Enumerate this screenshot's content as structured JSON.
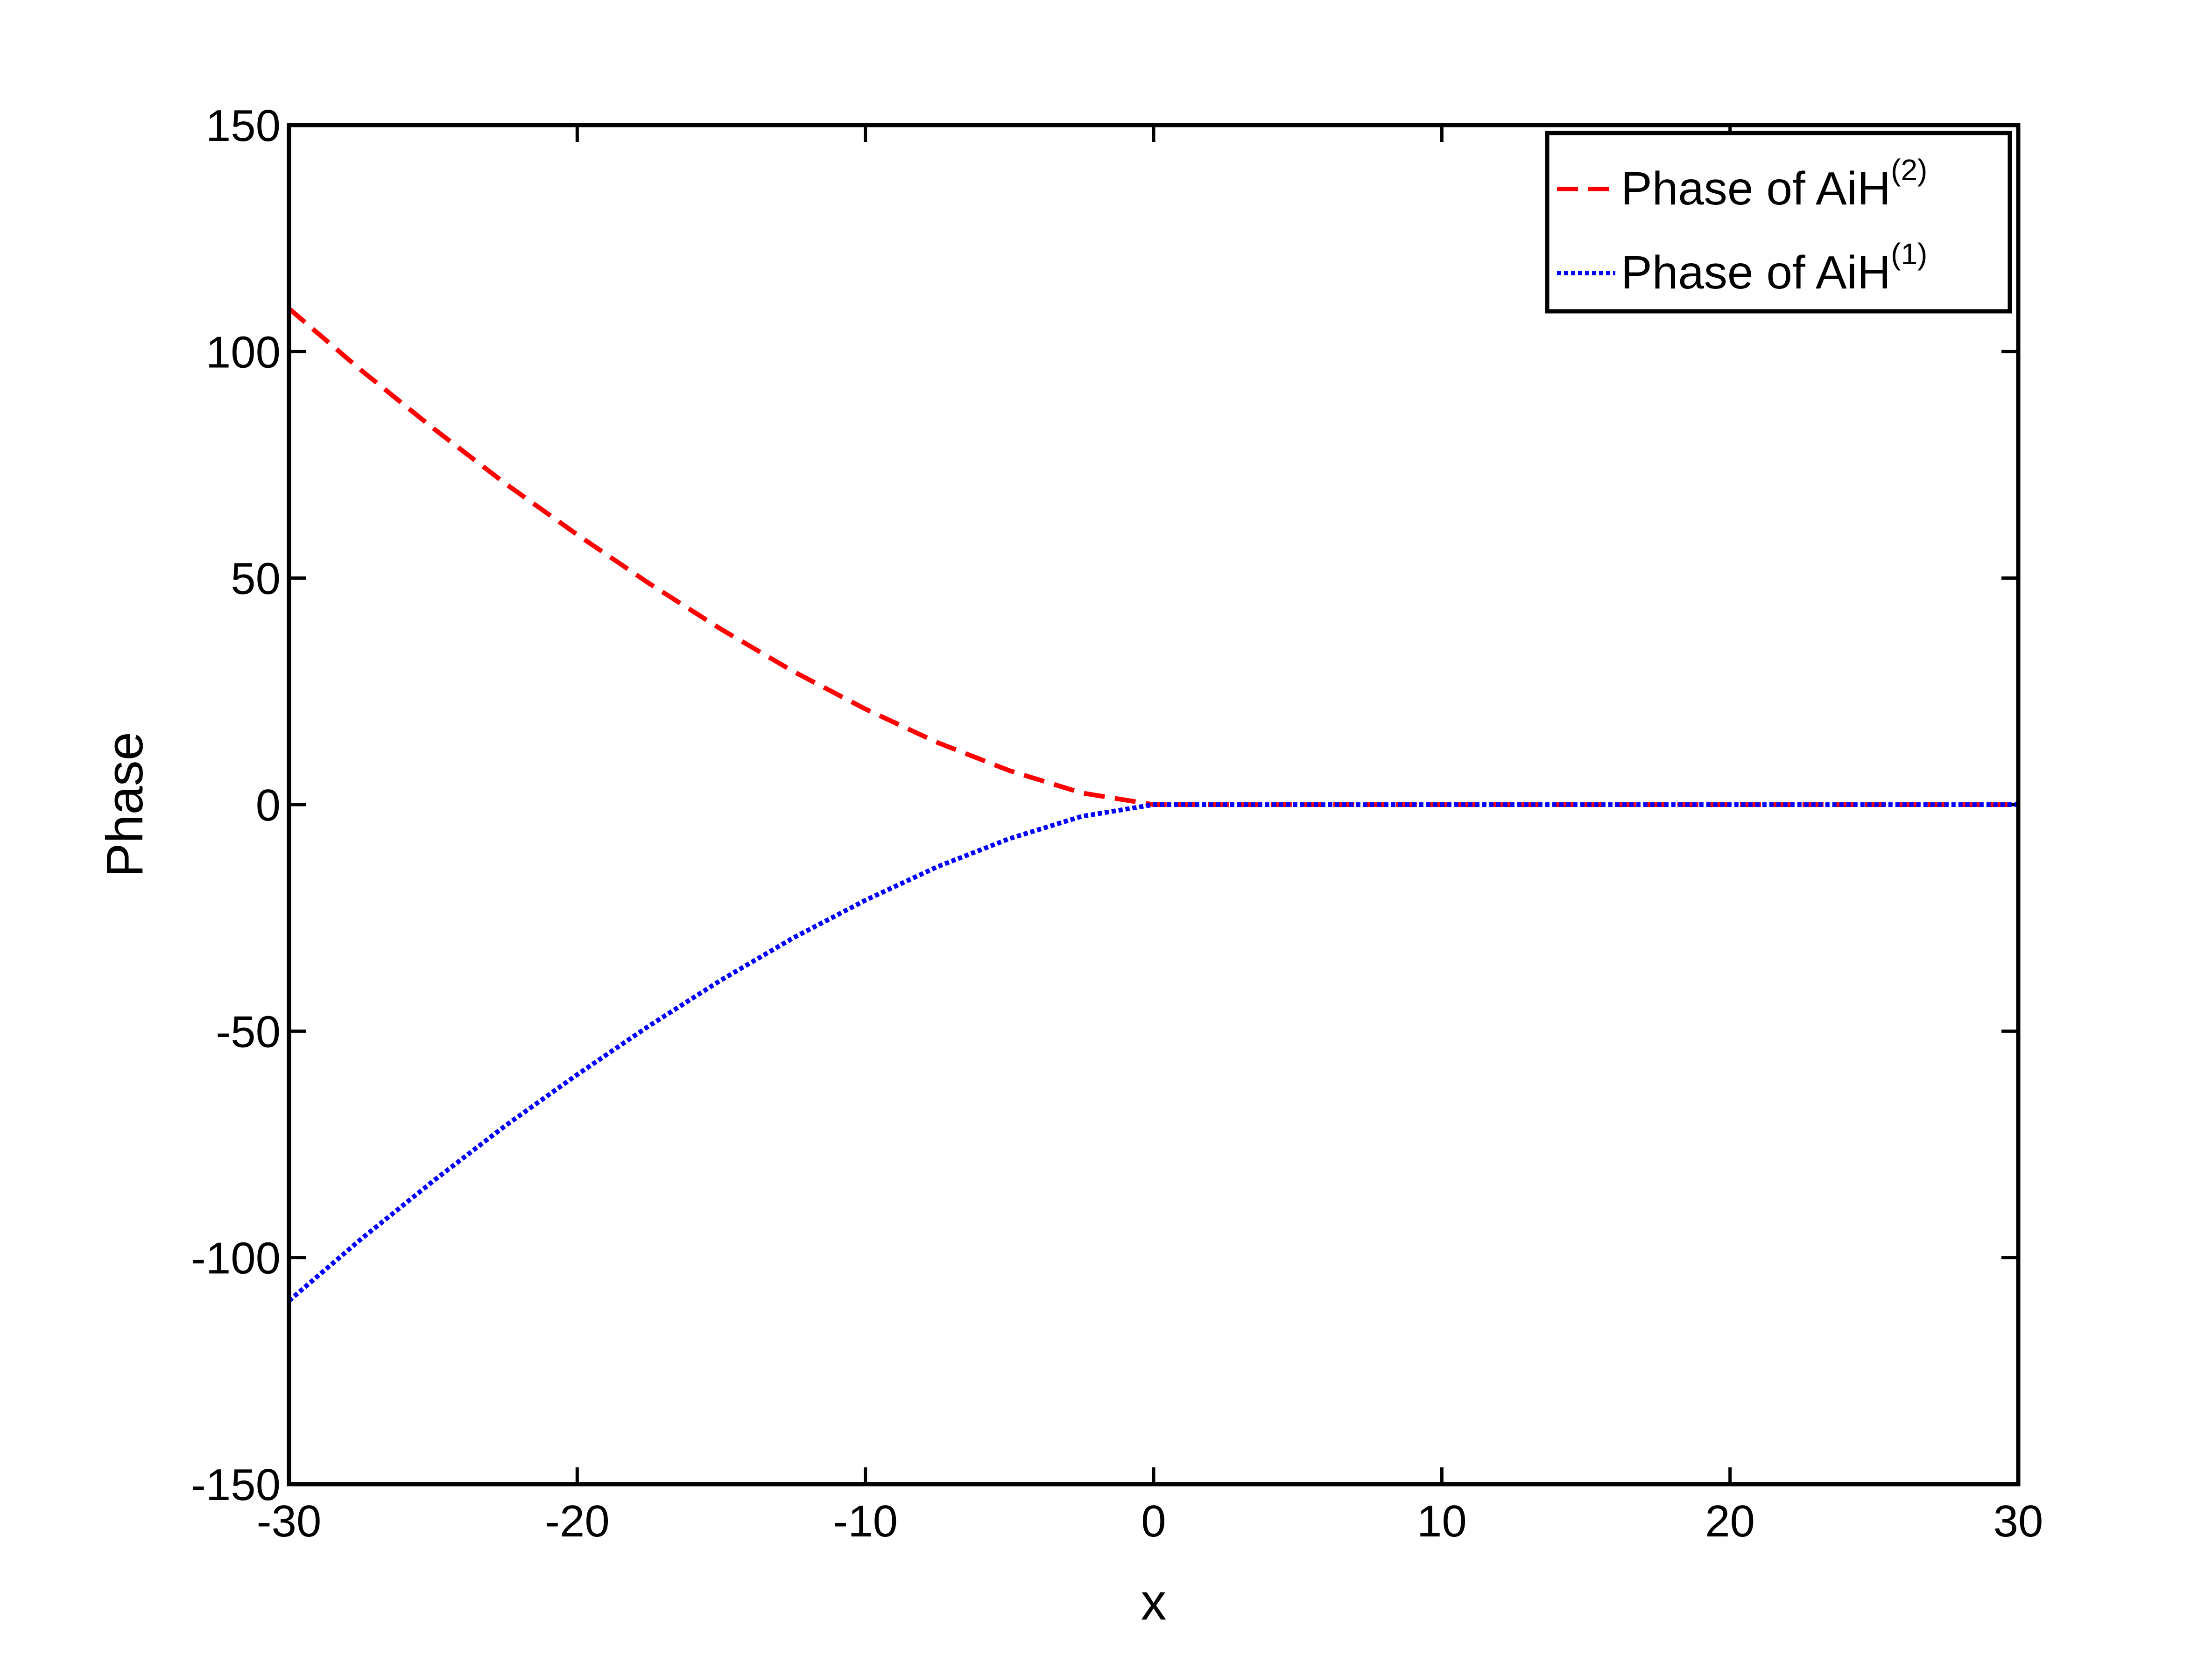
{
  "chart_data": {
    "type": "line",
    "title": "",
    "xlabel": "x",
    "ylabel": "Phase",
    "xlim": [
      -30,
      30
    ],
    "ylim": [
      -150,
      150
    ],
    "x_ticks": [
      -30,
      -20,
      -10,
      0,
      10,
      20,
      30
    ],
    "x_tick_labels": [
      "-30",
      "-20",
      "-10",
      "0",
      "10",
      "20",
      "30"
    ],
    "y_ticks": [
      -150,
      -100,
      -50,
      0,
      50,
      100,
      150
    ],
    "y_tick_labels": [
      "-150",
      "-100",
      "-50",
      "0",
      "50",
      "100",
      "150"
    ],
    "grid": false,
    "legend_position": "top-right",
    "series": [
      {
        "name": "Phase of AiH(2)",
        "legend_main": "Phase of AiH",
        "legend_sup": "(2)",
        "color": "#ff0000",
        "style": "dashed",
        "x": [
          -30,
          -27.5,
          -25,
          -22.5,
          -20,
          -17.5,
          -15,
          -12.5,
          -10,
          -7.5,
          -5,
          -2.5,
          0,
          5,
          10,
          15,
          20,
          25,
          30
        ],
        "y": [
          109.5,
          95.9,
          83.1,
          70.9,
          59.6,
          48.8,
          38.7,
          29.4,
          21.1,
          13.7,
          7.5,
          2.6,
          0,
          0,
          0,
          0,
          0,
          0,
          0
        ]
      },
      {
        "name": "Phase of AiH(1)",
        "legend_main": "Phase of AiH",
        "legend_sup": "(1)",
        "color": "#0000ff",
        "style": "dotted",
        "x": [
          -30,
          -27.5,
          -25,
          -22.5,
          -20,
          -17.5,
          -15,
          -12.5,
          -10,
          -7.5,
          -5,
          -2.5,
          0,
          5,
          10,
          15,
          20,
          25,
          30
        ],
        "y": [
          -109.5,
          -95.9,
          -83.1,
          -70.9,
          -59.6,
          -48.8,
          -38.7,
          -29.4,
          -21.1,
          -13.7,
          -7.5,
          -2.6,
          0,
          0,
          0,
          0,
          0,
          0,
          0
        ]
      }
    ]
  }
}
